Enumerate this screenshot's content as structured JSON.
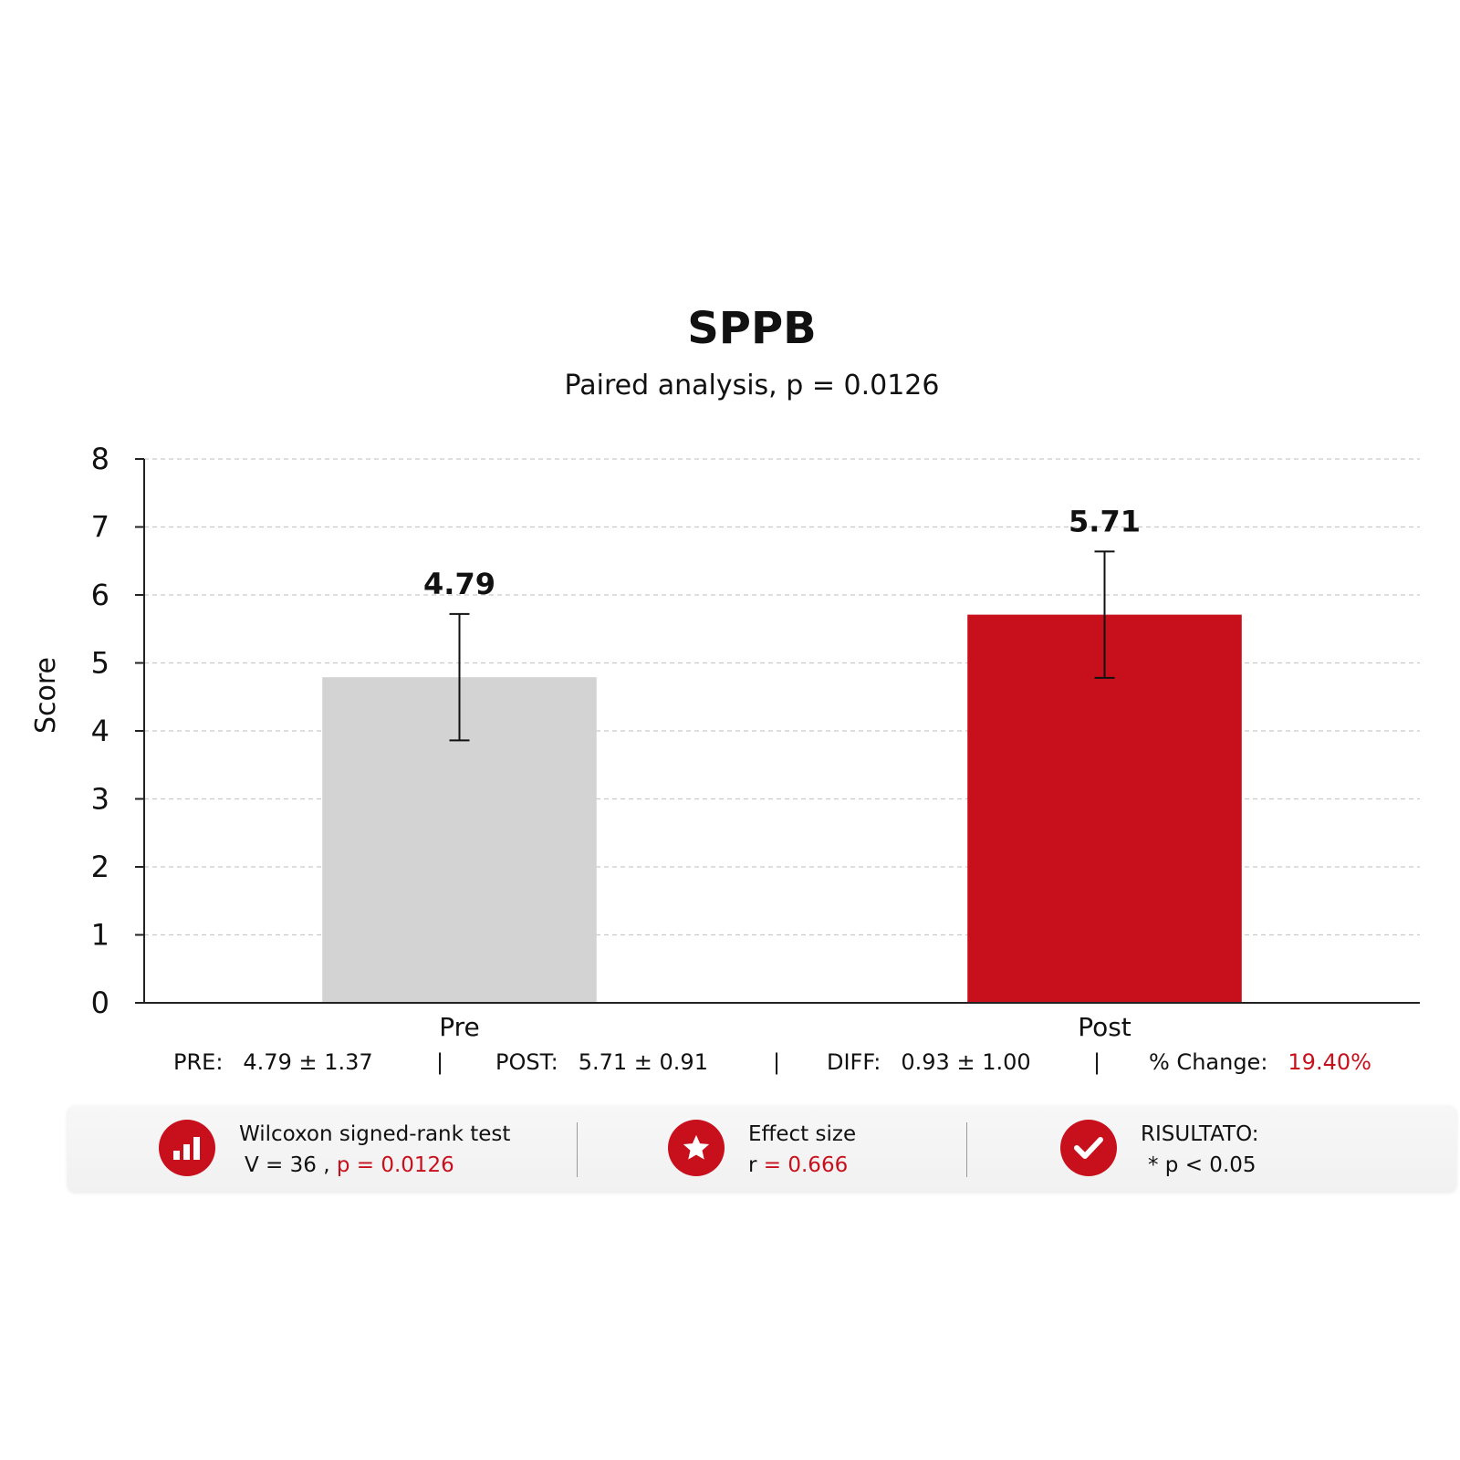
{
  "chart_data": {
    "type": "bar",
    "title": "SPPB",
    "subtitle": "Paired analysis, p = 0.0126",
    "ylabel": "Score",
    "ylim": [
      0,
      8
    ],
    "yticks": [
      "0",
      "1",
      "2",
      "3",
      "4",
      "5",
      "6",
      "7",
      "8"
    ],
    "categories": [
      "Pre",
      "Post"
    ],
    "values": [
      4.79,
      5.71
    ],
    "errors": [
      0.93,
      0.93
    ],
    "data_labels": [
      "4.79",
      "5.71"
    ],
    "colors": [
      "#d3d3d3",
      "#c8101c"
    ],
    "grid": true
  },
  "summary": {
    "pre_label": "PRE:",
    "pre_value": "4.79 ± 1.37",
    "post_label": "POST:",
    "post_value": "5.71 ± 0.91",
    "diff_label": "DIFF:",
    "diff_value": "0.93 ± 1.00",
    "change_label": "% Change:",
    "change_value": "19.40%",
    "separator": "|"
  },
  "stats": {
    "test": {
      "icon": "bar-chart-icon",
      "title": "Wilcoxon signed-rank test",
      "stat": "V = 36 ,",
      "p": "p = 0.0126"
    },
    "effect": {
      "icon": "star-icon",
      "title": "Effect size",
      "r_label": "r",
      "r_value": "= 0.666"
    },
    "result": {
      "icon": "check-icon",
      "title": "RISULTATO:",
      "value": "* p < 0.05"
    }
  },
  "accent_color": "#c8101c"
}
